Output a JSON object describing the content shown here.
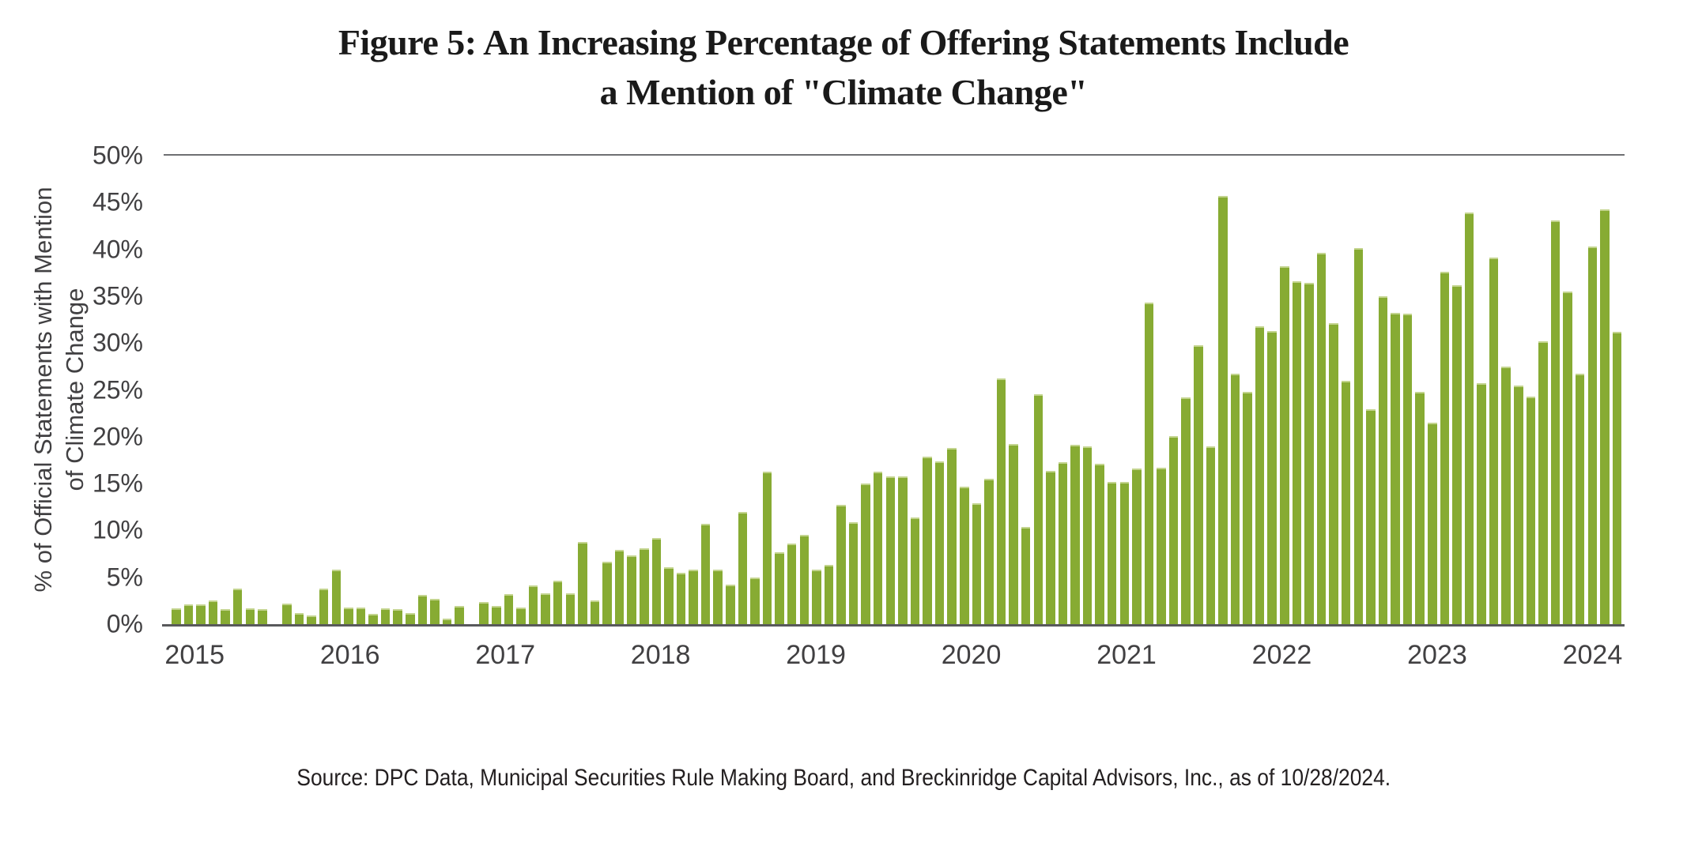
{
  "title": {
    "line1": "Figure 5: An Increasing Percentage of Offering Statements Include",
    "line2": "a Mention of \"Climate Change\""
  },
  "y_axis": {
    "label_line1": "% of Official Statements  with Mention",
    "label_line2": "of Climate Change",
    "ticks": [
      "50%",
      "45%",
      "40%",
      "35%",
      "30%",
      "25%",
      "20%",
      "15%",
      "10%",
      "5%",
      "0%"
    ],
    "max": 50
  },
  "x_axis": {
    "year_labels": [
      "2015",
      "2016",
      "2017",
      "2018",
      "2019",
      "2020",
      "2021",
      "2022",
      "2023",
      "2024"
    ]
  },
  "source_text": "Source: DPC Data, Municipal Securities Rule Making Board, and Breckinridge Capital Advisors, Inc., as of 10/28/2024.",
  "colors": {
    "bar": "#87ab33",
    "bar_edge": "#c3d48e",
    "axis_line": "#58595b",
    "gridline": "#6e6f72",
    "text": "#414042",
    "title_text": "#1a1a1a"
  },
  "chart_data": {
    "type": "bar",
    "title": "Figure 5: An Increasing Percentage of Offering Statements Include a Mention of \"Climate Change\"",
    "ylabel": "% of Official Statements with Mention of Climate Change",
    "unit": "percent",
    "frequency": "monthly",
    "ylim": [
      0,
      50
    ],
    "grid": "single line at 50% and baseline at 0%",
    "legend": "none",
    "years": [
      {
        "year": 2015,
        "values": [
          1.7,
          2.1,
          2.1,
          2.5,
          1.6,
          3.8,
          1.7,
          1.6,
          0,
          2.2,
          1.2,
          0.9
        ]
      },
      {
        "year": 2016,
        "values": [
          3.8,
          5.8,
          1.8,
          1.8,
          1.1,
          1.7,
          1.6,
          1.2,
          3.1,
          2.7,
          0.6,
          1.9
        ]
      },
      {
        "year": 2017,
        "values": [
          0,
          2.4,
          1.9,
          3.2,
          1.8,
          4.1,
          3.3,
          4.6,
          3.3,
          8.8,
          2.5,
          6.7
        ]
      },
      {
        "year": 2018,
        "values": [
          7.9,
          7.3,
          8.1,
          9.2,
          6.1,
          5.5,
          5.8,
          10.7,
          5.8,
          4.2,
          12.0,
          5.0
        ]
      },
      {
        "year": 2019,
        "values": [
          16.3,
          7.7,
          8.6,
          9.5,
          5.8,
          6.3,
          12.7,
          10.9,
          15.0,
          16.3,
          15.8,
          15.8
        ]
      },
      {
        "year": 2020,
        "values": [
          11.4,
          17.9,
          17.4,
          18.8,
          14.7,
          12.9,
          15.5,
          26.2,
          19.2,
          10.4,
          24.5,
          16.4
        ]
      },
      {
        "year": 2021,
        "values": [
          17.3,
          19.1,
          19.0,
          17.1,
          15.2,
          15.2,
          16.6,
          34.3,
          16.7,
          20.1,
          24.2,
          29.8
        ]
      },
      {
        "year": 2022,
        "values": [
          19.0,
          45.7,
          26.7,
          24.8,
          31.8,
          31.3,
          38.2,
          36.6,
          36.4,
          39.6,
          32.1,
          26.0
        ]
      },
      {
        "year": 2023,
        "values": [
          40.1,
          22.9,
          35.0,
          33.2,
          33.1,
          24.8,
          21.5,
          37.6,
          36.2,
          43.9,
          25.7,
          39.1
        ]
      },
      {
        "year": 2024,
        "values": [
          27.5,
          25.5,
          24.3,
          30.2,
          43.1,
          35.5,
          26.7,
          40.3,
          44.3,
          31.2
        ]
      }
    ]
  }
}
